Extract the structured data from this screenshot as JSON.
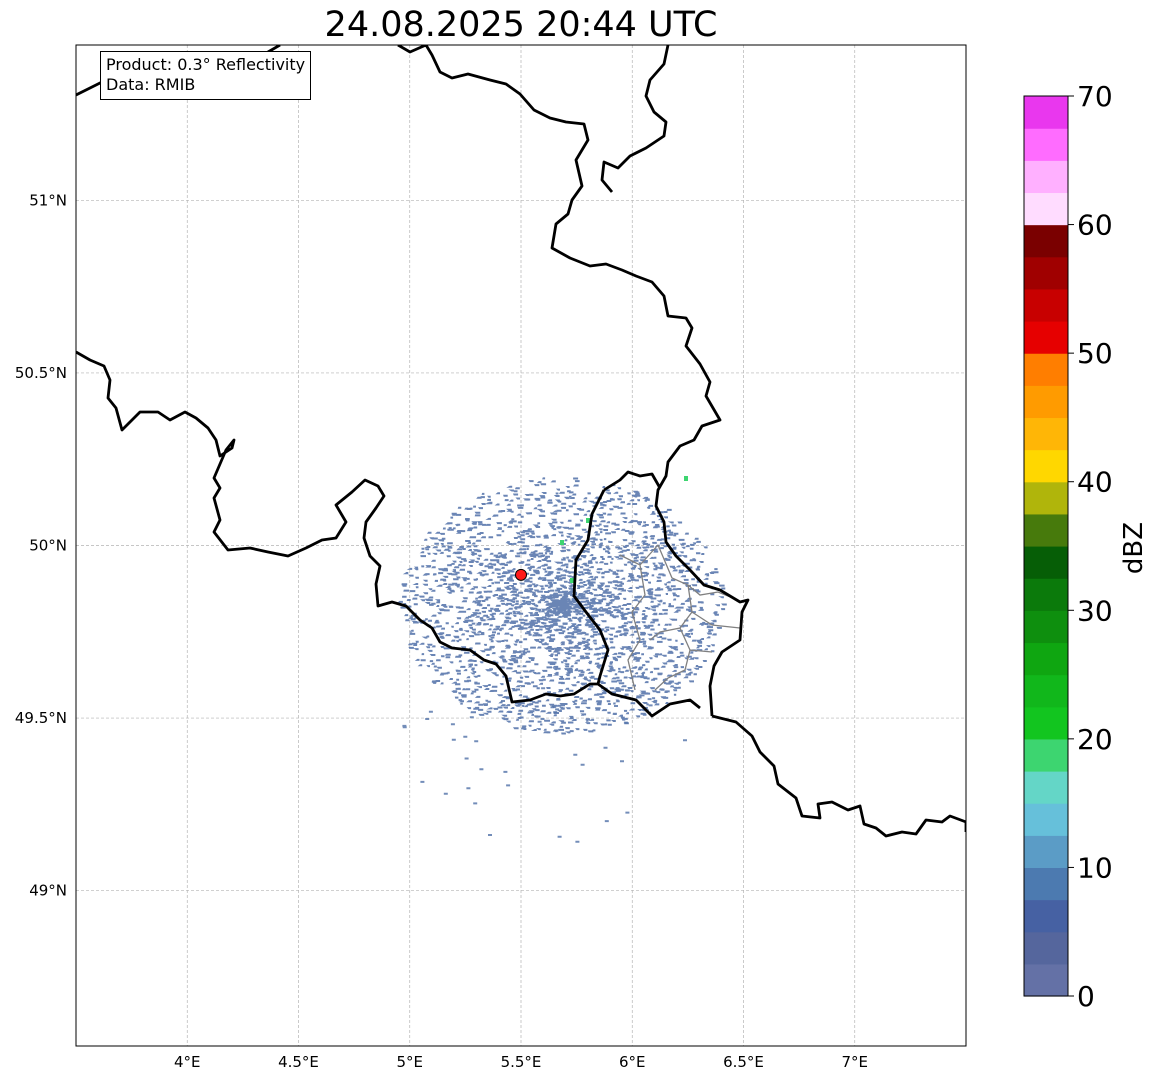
{
  "title": "24.08.2025 20:44 UTC",
  "info": {
    "product": "Product: 0.3° Reflectivity",
    "data": "Data: RMIB"
  },
  "map": {
    "lon_range": [
      3.5,
      7.5
    ],
    "lat_range": [
      48.55,
      51.45
    ],
    "lon_ticks": [
      {
        "value": 4.0,
        "label": "4°E"
      },
      {
        "value": 4.5,
        "label": "4.5°E"
      },
      {
        "value": 5.0,
        "label": "5°E"
      },
      {
        "value": 5.5,
        "label": "5.5°E"
      },
      {
        "value": 6.0,
        "label": "6°E"
      },
      {
        "value": 6.5,
        "label": "6.5°E"
      },
      {
        "value": 7.0,
        "label": "7°E"
      }
    ],
    "lat_ticks": [
      {
        "value": 49.0,
        "label": "49°N"
      },
      {
        "value": 49.5,
        "label": "49.5°N"
      },
      {
        "value": 50.0,
        "label": "50°N"
      },
      {
        "value": 50.5,
        "label": "50.5°N"
      },
      {
        "value": 51.0,
        "label": "51°N"
      }
    ],
    "grid": true,
    "radar_site": {
      "lon": 5.5,
      "lat": 49.915,
      "color": "#ff1a1a"
    }
  },
  "colorbar": {
    "label": "dBZ",
    "min": 0,
    "max": 70,
    "step": 2.5,
    "tick_labels": [
      "0",
      "10",
      "20",
      "30",
      "40",
      "50",
      "60",
      "70"
    ],
    "colors": [
      "#6471a6",
      "#55669d",
      "#4661a3",
      "#4c7ab0",
      "#5b9cc6",
      "#66c0da",
      "#64d6c7",
      "#3dd570",
      "#12c51f",
      "#11b71b",
      "#0fa611",
      "#0e8f0e",
      "#0b7a0b",
      "#065e06",
      "#477a0c",
      "#b0b50b",
      "#ffd700",
      "#ffb606",
      "#ff9b00",
      "#ff7e00",
      "#e60000",
      "#c80000",
      "#a00000",
      "#7a0000",
      "#ffdcff",
      "#ffb0ff",
      "#ff6cff",
      "#e937ee"
    ]
  },
  "colors": {
    "border": "#000000",
    "admin": "#808080",
    "grid": "#b4b4b4",
    "echo": "#5070a8"
  }
}
